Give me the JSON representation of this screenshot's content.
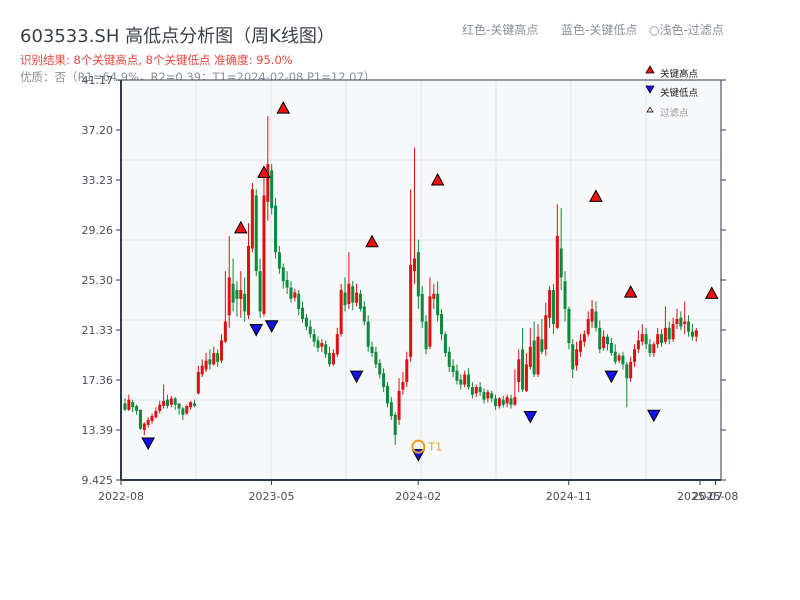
{
  "header": {
    "title": "603533.SH 高低点分析图（周K线图）",
    "result": "识别结果: 8个关键高点, 8个关键低点   准确度: 95.0%",
    "quality": "优质：否（R1=64.9%，R2=0.39；T1=2024-02-08 P1=12.07）",
    "legend_red": "红色-关键高点",
    "legend_blue": "蓝色-关键低点",
    "legend_light": "○浅色-过滤点"
  },
  "legend": {
    "items": [
      {
        "label": "关键高点",
        "marker": "triangle-up",
        "color": "#ee1111"
      },
      {
        "label": "关键低点",
        "marker": "triangle-down",
        "color": "#1111ee"
      },
      {
        "label": "过滤点",
        "marker": "triangle-up-light",
        "color": "#f6c9c9"
      }
    ]
  },
  "colors": {
    "up": "#dd1111",
    "down": "#0b8a3b",
    "high_marker": "#ee1111",
    "low_marker": "#1111ee",
    "t1_ring": "#f0a020",
    "axis": "#2e3a4a",
    "grid": "#e2e5ea",
    "plot_bg": "#f7f8fa"
  },
  "chart_data": {
    "type": "candlestick",
    "title": "603533.SH 高低点分析图（周K线图）",
    "xlabel": "",
    "ylabel": "",
    "ylim": [
      9.425,
      41.17
    ],
    "yticks": [
      "9.425",
      "13.39",
      "17.36",
      "21.33",
      "25.30",
      "29.26",
      "33.23",
      "37.20",
      "41.17"
    ],
    "xticks": [
      {
        "label": "2022-08",
        "week": 0
      },
      {
        "label": "2023-05",
        "week": 39
      },
      {
        "label": "2024-02",
        "week": 77
      },
      {
        "label": "2024-11",
        "week": 116
      },
      {
        "label": "2025-07",
        "week": 150
      },
      {
        "label": "2025-08",
        "week": 154
      }
    ],
    "grid": true,
    "legend_position": "upper right",
    "candles": [
      [
        15.5,
        15.0,
        15.9,
        14.9
      ],
      [
        15.0,
        15.8,
        16.2,
        14.9
      ],
      [
        15.6,
        15.2,
        15.8,
        14.8
      ],
      [
        15.3,
        14.9,
        15.4,
        14.6
      ],
      [
        15.0,
        13.5,
        15.0,
        13.4
      ],
      [
        13.4,
        13.9,
        14.0,
        13.0
      ],
      [
        13.8,
        14.2,
        14.4,
        13.6
      ],
      [
        14.1,
        14.5,
        14.7,
        13.9
      ],
      [
        14.4,
        14.9,
        15.2,
        14.3
      ],
      [
        14.9,
        15.4,
        15.7,
        14.7
      ],
      [
        15.3,
        15.7,
        17.0,
        15.1
      ],
      [
        15.8,
        15.3,
        16.2,
        15.1
      ],
      [
        15.4,
        15.9,
        16.1,
        15.2
      ],
      [
        15.9,
        15.4,
        16.0,
        15.0
      ],
      [
        15.5,
        15.1,
        15.5,
        14.6
      ],
      [
        15.1,
        14.6,
        15.2,
        14.2
      ],
      [
        14.7,
        15.3,
        15.4,
        14.6
      ],
      [
        15.2,
        15.6,
        15.7,
        15.0
      ],
      [
        15.5,
        15.3,
        15.8,
        15.2
      ],
      [
        16.3,
        18.0,
        18.5,
        16.2
      ],
      [
        17.8,
        18.5,
        19.0,
        17.6
      ],
      [
        18.2,
        18.9,
        19.5,
        18.0
      ],
      [
        19.0,
        18.6,
        19.8,
        18.2
      ],
      [
        18.6,
        19.5,
        20.0,
        18.5
      ],
      [
        19.5,
        18.8,
        19.8,
        18.4
      ],
      [
        18.9,
        20.5,
        21.0,
        18.7
      ],
      [
        20.4,
        22.0,
        26.0,
        20.3
      ],
      [
        22.5,
        25.5,
        28.8,
        21.5
      ],
      [
        25.0,
        23.5,
        27.0,
        22.8
      ],
      [
        24.5,
        23.8,
        25.2,
        22.4
      ],
      [
        23.8,
        24.5,
        26.0,
        22.3
      ],
      [
        24.2,
        22.8,
        25.5,
        22.0
      ],
      [
        22.5,
        28.0,
        29.8,
        22.2
      ],
      [
        27.8,
        32.5,
        33.0,
        27.5
      ],
      [
        32.0,
        26.0,
        32.5,
        25.6
      ],
      [
        26.0,
        22.8,
        27.0,
        22.3
      ],
      [
        22.6,
        32.0,
        33.5,
        22.4
      ],
      [
        31.5,
        34.5,
        38.3,
        30.0
      ],
      [
        34.0,
        31.0,
        34.5,
        30.5
      ],
      [
        31.2,
        27.5,
        31.8,
        27.0
      ],
      [
        27.5,
        26.2,
        28.0,
        25.8
      ],
      [
        26.3,
        25.2,
        26.6,
        24.6
      ],
      [
        25.3,
        24.7,
        26.0,
        24.2
      ],
      [
        24.7,
        23.8,
        25.2,
        23.5
      ],
      [
        23.9,
        24.3,
        24.6,
        23.6
      ],
      [
        24.2,
        23.0,
        24.5,
        22.5
      ],
      [
        23.1,
        22.2,
        23.6,
        21.9
      ],
      [
        22.3,
        21.6,
        22.6,
        21.3
      ],
      [
        21.6,
        21.0,
        22.1,
        20.7
      ],
      [
        21.0,
        20.4,
        21.4,
        20.0
      ],
      [
        20.5,
        19.9,
        20.8,
        19.6
      ],
      [
        20.0,
        20.3,
        20.6,
        19.6
      ],
      [
        20.2,
        19.4,
        20.5,
        19.1
      ],
      [
        19.5,
        18.6,
        20.0,
        18.4
      ],
      [
        18.6,
        19.5,
        19.8,
        18.5
      ],
      [
        19.4,
        21.0,
        21.5,
        19.2
      ],
      [
        21.0,
        24.5,
        25.0,
        20.8
      ],
      [
        24.3,
        23.3,
        25.5,
        22.8
      ],
      [
        23.4,
        25.0,
        27.5,
        23.0
      ],
      [
        24.8,
        23.5,
        25.2,
        22.9
      ],
      [
        23.5,
        24.3,
        25.0,
        23.2
      ],
      [
        24.2,
        23.0,
        24.5,
        22.8
      ],
      [
        23.2,
        22.0,
        23.6,
        21.7
      ],
      [
        22.0,
        20.0,
        22.5,
        19.6
      ],
      [
        20.0,
        19.5,
        20.4,
        19.2
      ],
      [
        19.6,
        18.6,
        20.0,
        18.3
      ],
      [
        18.7,
        17.8,
        19.0,
        17.5
      ],
      [
        17.9,
        16.8,
        18.3,
        16.4
      ],
      [
        16.9,
        15.5,
        17.2,
        15.2
      ],
      [
        15.6,
        14.5,
        16.0,
        14.2
      ],
      [
        14.6,
        13.0,
        14.8,
        12.2
      ],
      [
        14.2,
        16.5,
        17.5,
        13.8
      ],
      [
        16.6,
        17.2,
        18.0,
        16.2
      ],
      [
        17.2,
        19.0,
        19.6,
        16.8
      ],
      [
        19.2,
        26.5,
        32.5,
        18.8
      ],
      [
        26.0,
        27.0,
        35.8,
        25.0
      ],
      [
        27.5,
        24.0,
        28.5,
        23.0
      ],
      [
        24.2,
        22.0,
        24.8,
        21.5
      ],
      [
        22.0,
        19.8,
        22.5,
        19.4
      ],
      [
        20.0,
        24.0,
        25.5,
        19.8
      ],
      [
        23.8,
        24.2,
        25.0,
        23.0
      ],
      [
        24.2,
        22.5,
        25.2,
        22.0
      ],
      [
        22.6,
        21.0,
        23.0,
        20.5
      ],
      [
        21.0,
        19.5,
        21.2,
        19.2
      ],
      [
        19.6,
        18.4,
        20.0,
        18.0
      ],
      [
        18.5,
        18.0,
        19.0,
        17.6
      ],
      [
        18.1,
        17.3,
        18.6,
        17.0
      ],
      [
        17.4,
        17.0,
        17.8,
        16.6
      ],
      [
        17.0,
        17.8,
        18.1,
        16.8
      ],
      [
        17.8,
        16.8,
        18.3,
        16.6
      ],
      [
        16.8,
        16.2,
        17.2,
        15.9
      ],
      [
        16.3,
        16.8,
        17.0,
        16.0
      ],
      [
        16.8,
        16.4,
        17.2,
        16.1
      ],
      [
        16.4,
        15.8,
        16.7,
        15.5
      ],
      [
        15.9,
        16.4,
        16.6,
        15.6
      ],
      [
        16.3,
        15.9,
        16.5,
        15.6
      ],
      [
        15.9,
        15.3,
        16.2,
        15.0
      ],
      [
        15.3,
        15.9,
        16.0,
        15.1
      ],
      [
        15.8,
        15.4,
        16.1,
        15.2
      ],
      [
        15.5,
        16.0,
        16.2,
        15.2
      ],
      [
        15.9,
        15.4,
        16.2,
        15.1
      ],
      [
        15.4,
        16.0,
        18.2,
        15.3
      ],
      [
        17.2,
        19.0,
        19.8,
        16.4
      ],
      [
        19.8,
        16.6,
        21.5,
        16.4
      ],
      [
        16.5,
        18.6,
        19.5,
        16.4
      ],
      [
        18.4,
        20.0,
        21.5,
        18.2
      ],
      [
        20.5,
        17.8,
        22.0,
        17.6
      ],
      [
        17.8,
        20.8,
        21.8,
        17.6
      ],
      [
        20.6,
        19.6,
        22.2,
        19.4
      ],
      [
        19.8,
        22.5,
        23.5,
        19.3
      ],
      [
        22.3,
        24.5,
        24.8,
        21.5
      ],
      [
        24.5,
        21.8,
        25.0,
        21.0
      ],
      [
        21.5,
        28.8,
        31.3,
        21.4
      ],
      [
        27.8,
        25.5,
        31.0,
        24.5
      ],
      [
        25.2,
        23.0,
        26.0,
        22.0
      ],
      [
        23.0,
        20.3,
        23.2,
        19.8
      ],
      [
        20.2,
        18.2,
        20.6,
        17.5
      ],
      [
        18.5,
        19.8,
        20.4,
        18.1
      ],
      [
        19.6,
        20.5,
        21.0,
        19.2
      ],
      [
        20.4,
        21.0,
        21.3,
        20.0
      ],
      [
        21.0,
        22.2,
        22.8,
        20.8
      ],
      [
        22.0,
        23.0,
        23.7,
        21.5
      ],
      [
        22.8,
        21.5,
        23.6,
        21.2
      ],
      [
        21.5,
        19.8,
        22.1,
        19.5
      ],
      [
        19.9,
        20.8,
        21.3,
        19.7
      ],
      [
        20.8,
        20.2,
        21.0,
        19.7
      ],
      [
        20.3,
        19.5,
        20.7,
        19.3
      ],
      [
        19.6,
        18.8,
        20.2,
        18.6
      ],
      [
        18.9,
        19.3,
        19.5,
        18.7
      ],
      [
        19.3,
        18.6,
        19.6,
        18.2
      ],
      [
        18.6,
        17.5,
        18.8,
        15.2
      ],
      [
        17.5,
        18.8,
        19.2,
        17.2
      ],
      [
        18.8,
        19.8,
        20.2,
        18.4
      ],
      [
        19.8,
        20.5,
        21.3,
        19.5
      ],
      [
        20.4,
        21.0,
        21.8,
        20.1
      ],
      [
        21.0,
        20.2,
        21.5,
        19.8
      ],
      [
        20.2,
        19.5,
        20.6,
        19.2
      ],
      [
        19.5,
        20.2,
        20.4,
        19.2
      ],
      [
        20.2,
        21.0,
        21.5,
        19.9
      ],
      [
        21.0,
        20.3,
        21.4,
        20.0
      ],
      [
        20.4,
        21.5,
        23.2,
        20.2
      ],
      [
        21.5,
        20.6,
        22.0,
        20.2
      ],
      [
        20.6,
        21.8,
        22.3,
        20.4
      ],
      [
        21.8,
        22.2,
        23.0,
        21.4
      ],
      [
        22.3,
        21.6,
        22.8,
        21.3
      ],
      [
        21.8,
        22.0,
        23.6,
        21.0
      ],
      [
        22.0,
        21.2,
        22.5,
        20.8
      ],
      [
        21.2,
        20.8,
        21.8,
        20.5
      ],
      [
        20.8,
        21.3,
        21.5,
        20.4
      ]
    ],
    "key_highs": [
      {
        "week": 30,
        "price": 28.8
      },
      {
        "week": 36,
        "price": 33.2
      },
      {
        "week": 41,
        "price": 38.3
      },
      {
        "week": 64,
        "price": 27.7
      },
      {
        "week": 81,
        "price": 32.6
      },
      {
        "week": 122,
        "price": 31.3
      },
      {
        "week": 131,
        "price": 23.7
      },
      {
        "week": 152,
        "price": 23.6
      }
    ],
    "key_lows": [
      {
        "week": 6,
        "price": 13.0
      },
      {
        "week": 34,
        "price": 22.0
      },
      {
        "week": 38,
        "price": 22.3
      },
      {
        "week": 60,
        "price": 18.3
      },
      {
        "week": 76,
        "price": 12.07
      },
      {
        "week": 105,
        "price": 15.1
      },
      {
        "week": 126,
        "price": 18.3
      },
      {
        "week": 137,
        "price": 15.2
      }
    ],
    "t1": {
      "label": "T1",
      "date": "2024-02-08",
      "week": 76,
      "price": 12.07
    }
  }
}
